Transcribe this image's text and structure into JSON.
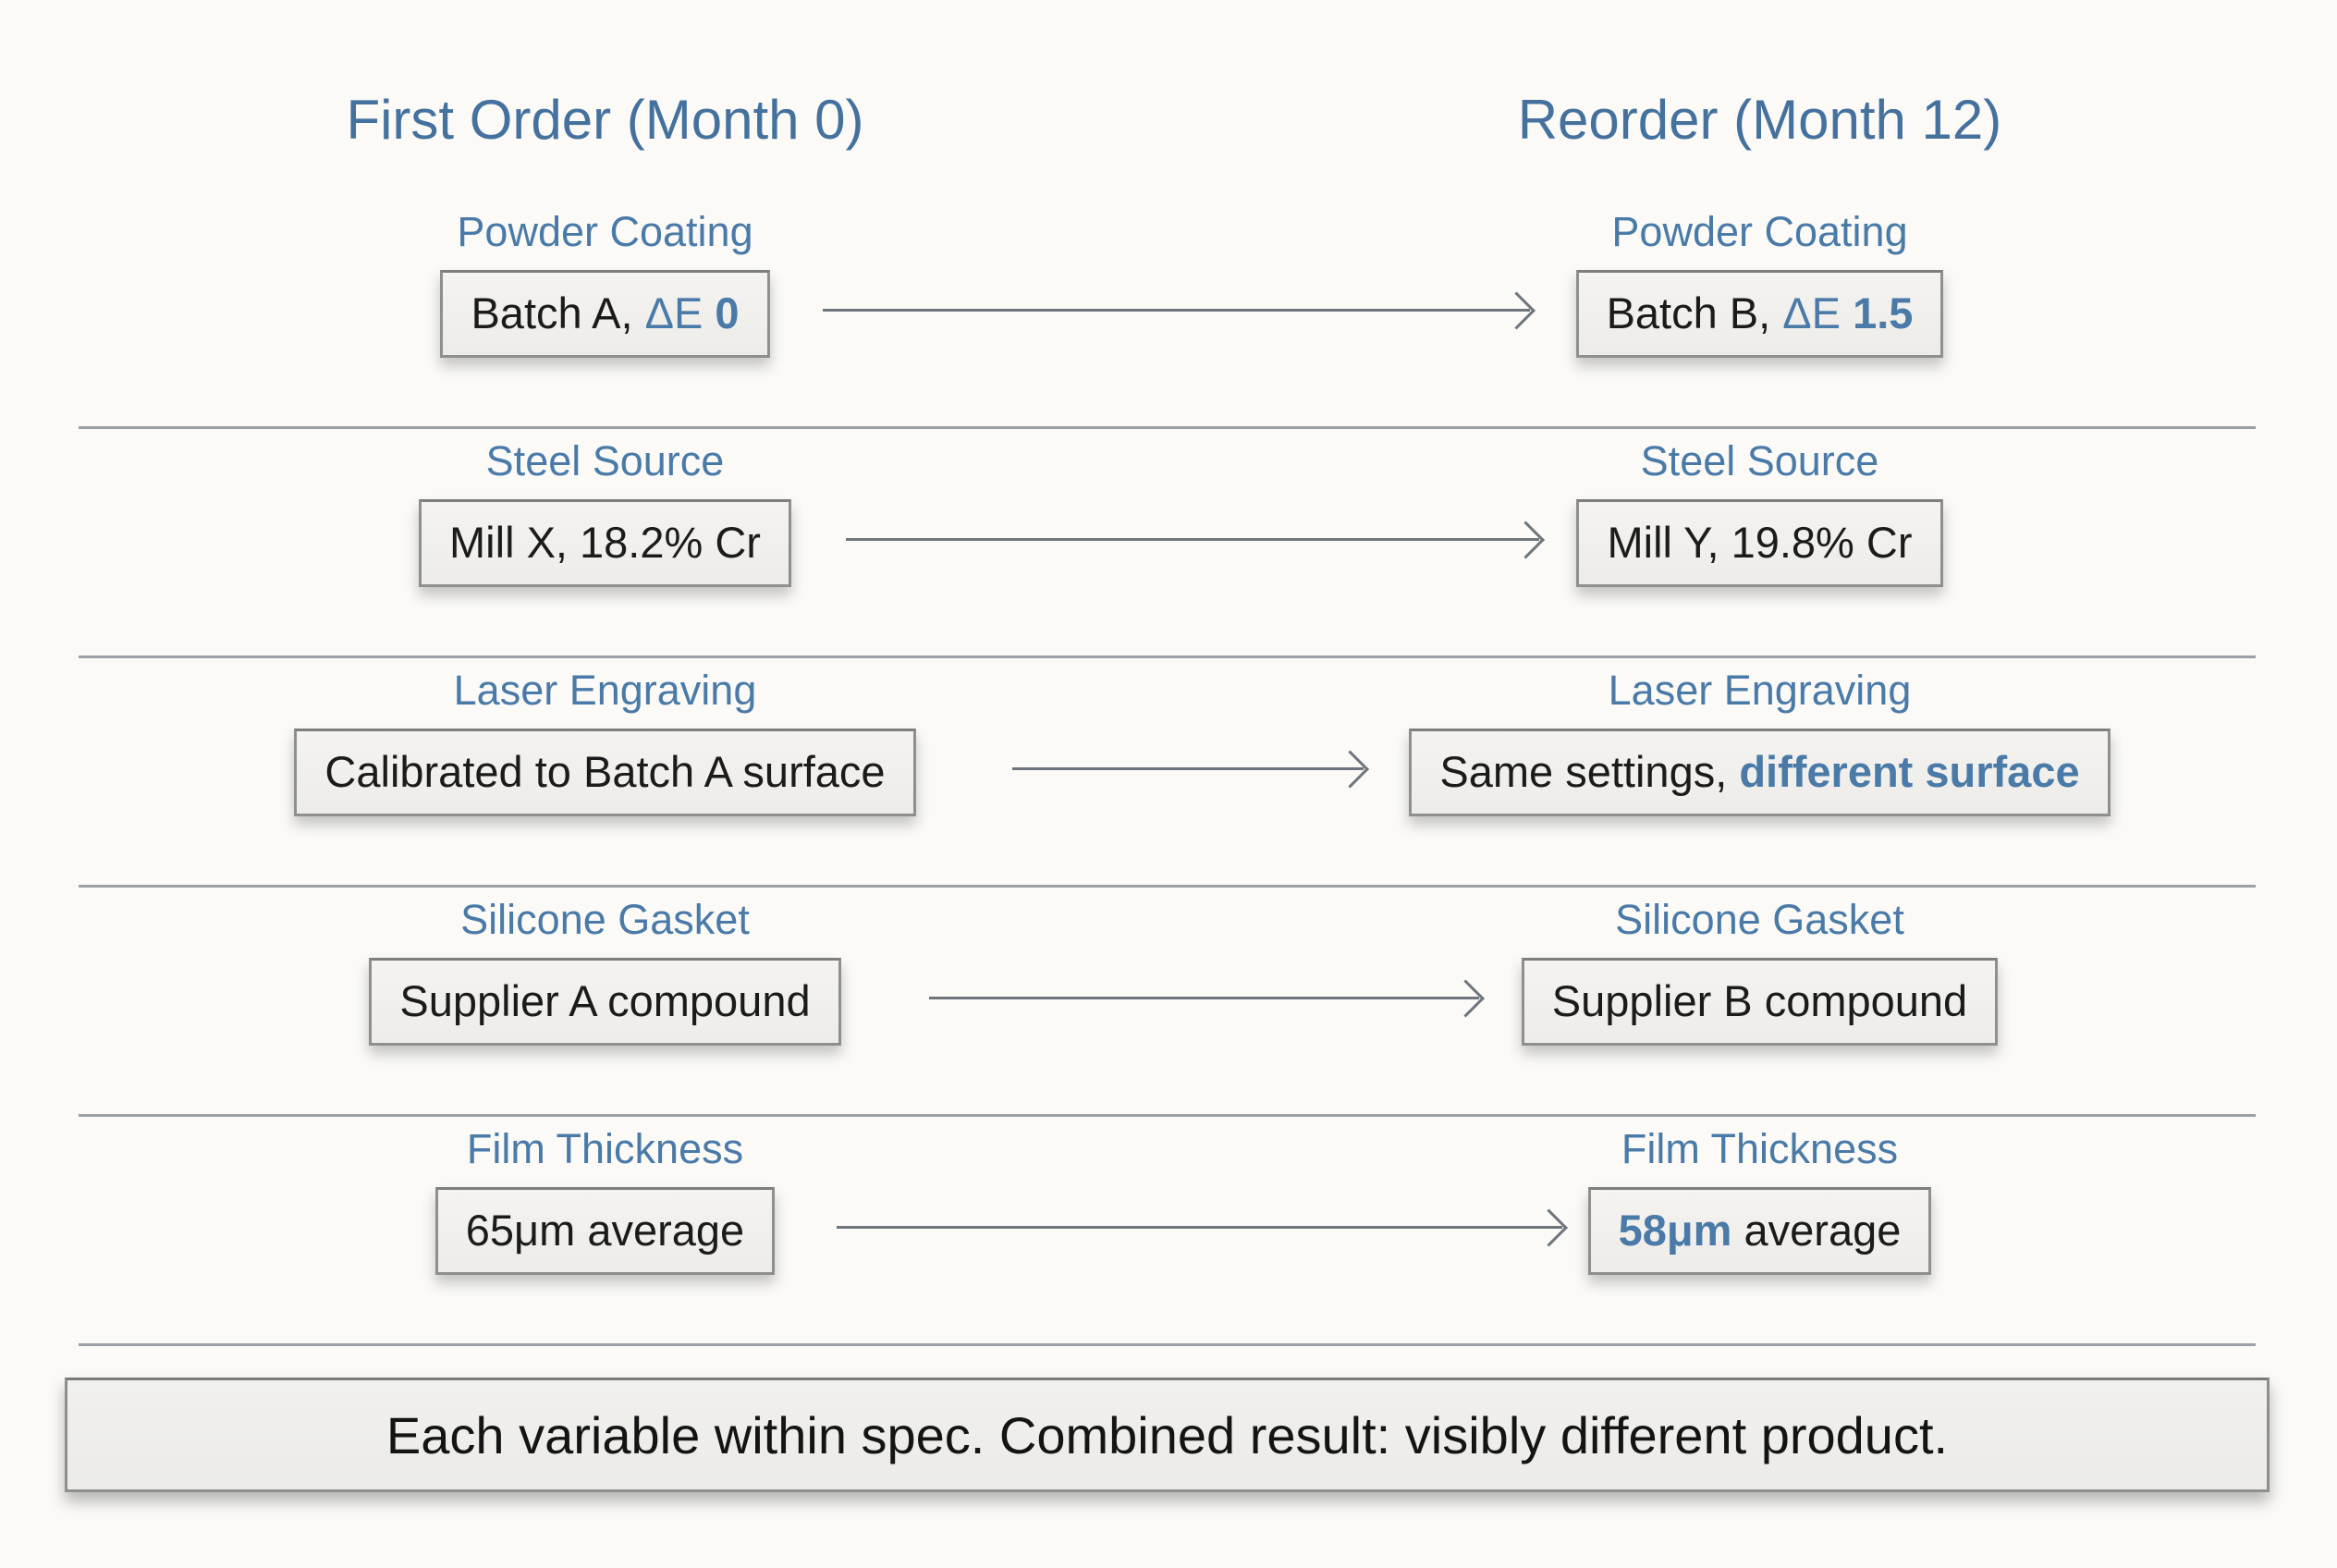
{
  "diagram": {
    "columns": [
      {
        "header": "First Order (Month 0)"
      },
      {
        "header": "Reorder (Month 12)"
      }
    ],
    "rows": [
      {
        "label": "Powder Coating",
        "left_segments": [
          {
            "text": "Batch A, ",
            "style": "plain"
          },
          {
            "text": "ΔE ",
            "style": "accent"
          },
          {
            "text": "0",
            "style": "accent-bold"
          }
        ],
        "right_segments": [
          {
            "text": "Batch B, ",
            "style": "plain"
          },
          {
            "text": "ΔE ",
            "style": "accent"
          },
          {
            "text": "1.5",
            "style": "accent-bold"
          }
        ]
      },
      {
        "label": "Steel Source",
        "left_segments": [
          {
            "text": "Mill X, 18.2% Cr",
            "style": "plain"
          }
        ],
        "right_segments": [
          {
            "text": "Mill Y, 19.8% Cr",
            "style": "plain"
          }
        ]
      },
      {
        "label": "Laser Engraving",
        "left_segments": [
          {
            "text": "Calibrated to Batch A surface",
            "style": "plain"
          }
        ],
        "right_segments": [
          {
            "text": "Same settings, ",
            "style": "plain"
          },
          {
            "text": "different surface",
            "style": "accent-bold"
          }
        ]
      },
      {
        "label": "Silicone Gasket",
        "left_segments": [
          {
            "text": "Supplier A compound",
            "style": "plain"
          }
        ],
        "right_segments": [
          {
            "text": "Supplier B compound",
            "style": "plain"
          }
        ]
      },
      {
        "label": "Film Thickness",
        "left_segments": [
          {
            "text": "65μm average",
            "style": "plain"
          }
        ],
        "right_segments": [
          {
            "text": "58μm ",
            "style": "accent-bold"
          },
          {
            "text": "average",
            "style": "plain"
          }
        ]
      }
    ],
    "footer": "Each variable within spec. Combined result: visibly different product.",
    "colors": {
      "header_blue": "#44719e",
      "accent_blue": "#4a7aa8",
      "box_text": "#1b1b1b",
      "box_background": "#f1efec",
      "box_border": "#8f8f8f",
      "arrow_gray": "#6e757c",
      "separator_gray": "#9aa0a5",
      "page_background": "#fbfaf7"
    }
  }
}
